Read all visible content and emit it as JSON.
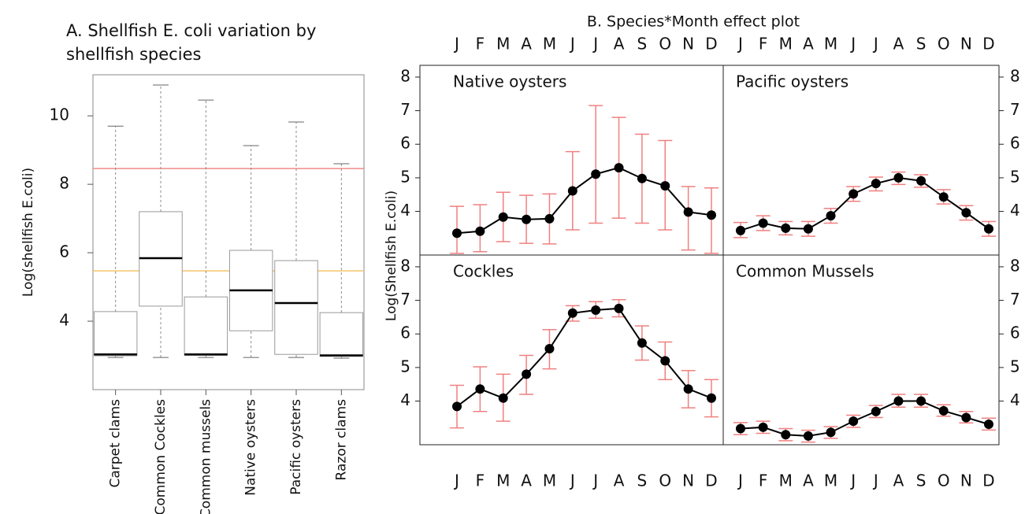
{
  "chart_data": [
    {
      "type": "box",
      "title": "A. Shellfish E. coli variation by shellfish species",
      "ylabel": "Log(shellfish E.coli)",
      "categories": [
        "Carpet clams",
        "Common Cockles",
        "Common mussels",
        "Native oysters",
        "Pacific oysters",
        "Razor clams"
      ],
      "min": [
        2.94,
        2.94,
        2.94,
        2.94,
        2.94,
        2.92
      ],
      "q1": [
        2.99,
        4.44,
        3.0,
        3.72,
        3.03,
        2.97
      ],
      "median": [
        3.03,
        5.84,
        3.03,
        4.9,
        4.53,
        3.0
      ],
      "q3": [
        4.28,
        7.2,
        4.71,
        6.07,
        5.77,
        4.25
      ],
      "max": [
        9.7,
        10.9,
        10.46,
        9.13,
        9.82,
        8.6
      ],
      "ylim": [
        2.0,
        11.2
      ],
      "yticks": [
        4,
        6,
        8,
        10
      ],
      "hlines": [
        {
          "value": 8.46,
          "color": "#f28a8a"
        },
        {
          "value": 5.47,
          "color": "#f3c46a"
        }
      ],
      "color": "#999999"
    },
    {
      "type": "effect",
      "title": "B. Species*Month effect plot",
      "ylabel": "Log(Shellfish E.coli)",
      "categories": [
        "J",
        "F",
        "M",
        "A",
        "M",
        "J",
        "J",
        "A",
        "S",
        "O",
        "N",
        "D"
      ],
      "ylim": [
        2.7,
        8.35
      ],
      "yticks": [
        4,
        5,
        6,
        7,
        8
      ],
      "line_color": "#000000",
      "error_color": "#f08080",
      "series": [
        {
          "name": "Native oysters",
          "values": [
            3.35,
            3.41,
            3.83,
            3.76,
            3.78,
            4.61,
            5.11,
            5.3,
            4.98,
            4.76,
            3.98,
            3.89
          ],
          "lower": [
            2.75,
            2.8,
            3.1,
            3.05,
            3.03,
            3.45,
            3.65,
            3.8,
            3.65,
            3.45,
            2.85,
            2.75
          ],
          "upper": [
            4.15,
            4.2,
            4.57,
            4.48,
            4.52,
            5.78,
            7.15,
            6.8,
            6.3,
            6.11,
            4.74,
            4.7
          ]
        },
        {
          "name": "Pacific oysters",
          "values": [
            3.43,
            3.65,
            3.5,
            3.48,
            3.87,
            4.52,
            4.83,
            5.0,
            4.91,
            4.43,
            3.96,
            3.48
          ],
          "lower": [
            3.22,
            3.43,
            3.3,
            3.26,
            3.65,
            4.3,
            4.61,
            4.8,
            4.72,
            4.22,
            3.74,
            3.26
          ],
          "upper": [
            3.67,
            3.87,
            3.7,
            3.7,
            4.09,
            4.74,
            5.02,
            5.17,
            5.09,
            4.65,
            4.17,
            3.7
          ]
        },
        {
          "name": "Cockles",
          "values": [
            3.84,
            4.36,
            4.09,
            4.8,
            5.56,
            6.62,
            6.71,
            6.76,
            5.73,
            5.2,
            4.36,
            4.09
          ],
          "lower": [
            3.2,
            3.69,
            3.4,
            4.2,
            4.96,
            6.38,
            6.47,
            6.51,
            5.22,
            4.64,
            3.8,
            3.53
          ],
          "upper": [
            4.47,
            5.02,
            4.8,
            5.36,
            6.13,
            6.84,
            6.96,
            7.02,
            6.24,
            5.76,
            4.91,
            4.64
          ]
        },
        {
          "name": "Common Mussels",
          "values": [
            3.18,
            3.22,
            3.0,
            2.96,
            3.07,
            3.4,
            3.69,
            4.0,
            4.0,
            3.71,
            3.51,
            3.31
          ],
          "lower": [
            3.0,
            3.04,
            2.82,
            2.78,
            2.89,
            3.22,
            3.51,
            3.82,
            3.82,
            3.55,
            3.35,
            3.14
          ],
          "upper": [
            3.36,
            3.4,
            3.18,
            3.13,
            3.24,
            3.58,
            3.87,
            4.2,
            4.2,
            3.89,
            3.69,
            3.49
          ]
        }
      ]
    }
  ]
}
